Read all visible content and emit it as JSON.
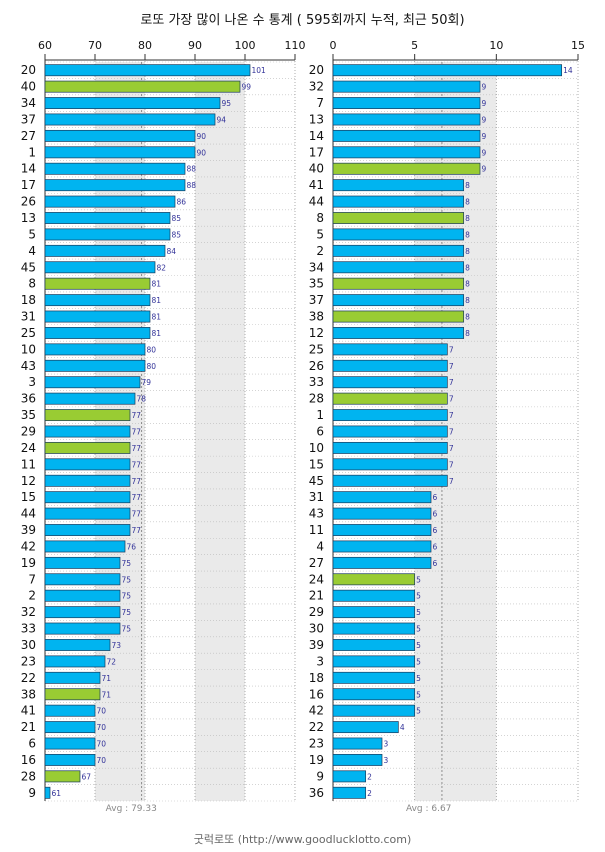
{
  "title": "로또 가장 많이 나온 수 통계 ( 595회까지 누적, 최근 50회)",
  "footer": "굿럭로또 (http://www.goodlucklotto.com)",
  "colors": {
    "bar": "#00b4f0",
    "bar_highlight": "#99cc33",
    "bar_stroke": "#1a3a5c",
    "grid": "#999999",
    "band": "#eaeaea",
    "value_label": "#333399"
  },
  "chart_data": [
    {
      "type": "bar",
      "orientation": "horizontal",
      "x_ticks": [
        60,
        70,
        80,
        90,
        100,
        110
      ],
      "xlim": [
        60,
        110
      ],
      "average_label": "Avg : 79.33",
      "average": 79.33,
      "categories": [
        "20",
        "40",
        "34",
        "37",
        "27",
        "1",
        "14",
        "17",
        "26",
        "13",
        "5",
        "4",
        "45",
        "8",
        "18",
        "31",
        "25",
        "10",
        "43",
        "3",
        "36",
        "35",
        "29",
        "24",
        "11",
        "12",
        "15",
        "44",
        "39",
        "42",
        "19",
        "7",
        "2",
        "32",
        "33",
        "30",
        "23",
        "22",
        "38",
        "41",
        "21",
        "6",
        "16",
        "28",
        "9"
      ],
      "values": [
        101,
        99,
        95,
        94,
        90,
        90,
        88,
        88,
        86,
        85,
        85,
        84,
        82,
        81,
        81,
        81,
        81,
        80,
        80,
        79,
        78,
        77,
        77,
        77,
        77,
        77,
        77,
        77,
        77,
        76,
        75,
        75,
        75,
        75,
        75,
        73,
        72,
        71,
        71,
        70,
        70,
        70,
        70,
        67,
        61
      ],
      "highlighted": [
        "40",
        "8",
        "35",
        "24",
        "38",
        "28"
      ]
    },
    {
      "type": "bar",
      "orientation": "horizontal",
      "x_ticks": [
        0,
        5,
        10,
        15
      ],
      "xlim": [
        0,
        15
      ],
      "average_label": "Avg : 6.67",
      "average": 6.67,
      "categories": [
        "20",
        "32",
        "7",
        "13",
        "14",
        "17",
        "40",
        "41",
        "44",
        "8",
        "5",
        "2",
        "34",
        "35",
        "37",
        "38",
        "12",
        "25",
        "26",
        "33",
        "28",
        "1",
        "6",
        "10",
        "15",
        "45",
        "31",
        "43",
        "11",
        "4",
        "27",
        "24",
        "21",
        "29",
        "30",
        "39",
        "3",
        "18",
        "16",
        "42",
        "22",
        "23",
        "19",
        "9",
        "36"
      ],
      "values": [
        14,
        9,
        9,
        9,
        9,
        9,
        9,
        8,
        8,
        8,
        8,
        8,
        8,
        8,
        8,
        8,
        8,
        7,
        7,
        7,
        7,
        7,
        7,
        7,
        7,
        7,
        6,
        6,
        6,
        6,
        6,
        5,
        5,
        5,
        5,
        5,
        5,
        5,
        5,
        5,
        4,
        3,
        3,
        2,
        2
      ],
      "highlighted": [
        "40",
        "8",
        "35",
        "38",
        "28",
        "24"
      ]
    }
  ]
}
